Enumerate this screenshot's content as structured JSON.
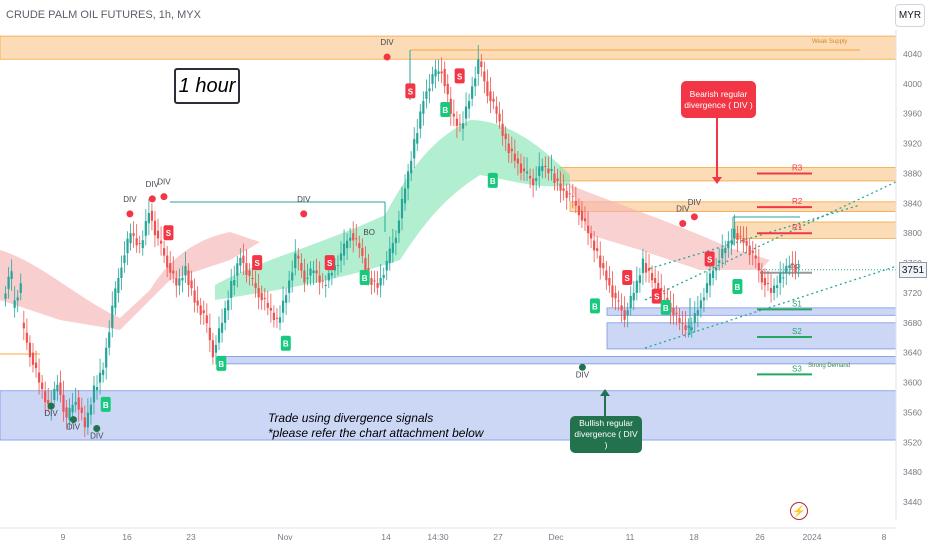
{
  "header": {
    "title": "CRUDE PALM OIL FUTURES, 1h, MYX"
  },
  "currency_button": "MYR",
  "last_price_tag": "3751",
  "timeframe_label": "1 hour",
  "note": {
    "line1": "Trade using divergence signals",
    "line2": "*please refer the chart attachment below"
  },
  "callouts": {
    "bearish": "Bearish regular divergence ( DIV )",
    "bullish": "Bullish regular divergence ( DIV )"
  },
  "logo_icon": "tradingview-logo-icon",
  "colors": {
    "up": "#26a69a",
    "down": "#ef5350",
    "supply": "#f7a440",
    "demand": "#7a96e8",
    "bear_band": "#f6b3b3",
    "bull_band": "#7fe3b0",
    "signal_s": "#f23645",
    "signal_b": "#16c97d"
  },
  "chart_data": {
    "type": "candlestick",
    "title": "CRUDE PALM OIL FUTURES, 1h, MYX",
    "ylim": [
      3380,
      4080
    ],
    "y_ticks": [
      4040,
      4000,
      3960,
      3920,
      3880,
      3840,
      3800,
      3760,
      3720,
      3680,
      3640,
      3600,
      3560,
      3520,
      3480,
      3440
    ],
    "x_ticks": [
      "9",
      "16",
      "23",
      "Nov",
      "14",
      "14:30",
      "27",
      "Dec",
      "11",
      "18",
      "26",
      "2024",
      "8"
    ],
    "last_price": 3751,
    "price_path": [
      [
        3712,
        3752
      ],
      [
        3700,
        3730
      ],
      [
        3680,
        3640
      ],
      [
        3640,
        3600
      ],
      [
        3600,
        3565
      ],
      [
        3565,
        3600
      ],
      [
        3600,
        3550
      ],
      [
        3550,
        3580
      ],
      [
        3580,
        3540
      ],
      [
        3540,
        3590
      ],
      [
        3590,
        3620
      ],
      [
        3620,
        3700
      ],
      [
        3700,
        3760
      ],
      [
        3760,
        3800
      ],
      [
        3800,
        3780
      ],
      [
        3780,
        3830
      ],
      [
        3830,
        3790
      ],
      [
        3790,
        3760
      ],
      [
        3760,
        3730
      ],
      [
        3730,
        3750
      ],
      [
        3750,
        3710
      ],
      [
        3710,
        3690
      ],
      [
        3690,
        3640
      ],
      [
        3640,
        3680
      ],
      [
        3680,
        3730
      ],
      [
        3730,
        3770
      ],
      [
        3770,
        3740
      ],
      [
        3740,
        3720
      ],
      [
        3720,
        3700
      ],
      [
        3700,
        3680
      ],
      [
        3680,
        3720
      ],
      [
        3720,
        3770
      ],
      [
        3770,
        3740
      ],
      [
        3740,
        3750
      ],
      [
        3750,
        3730
      ],
      [
        3730,
        3750
      ],
      [
        3750,
        3770
      ],
      [
        3770,
        3800
      ],
      [
        3800,
        3780
      ],
      [
        3780,
        3740
      ],
      [
        3740,
        3730
      ],
      [
        3730,
        3760
      ],
      [
        3760,
        3800
      ],
      [
        3800,
        3860
      ],
      [
        3860,
        3920
      ],
      [
        3920,
        3980
      ],
      [
        3980,
        4010
      ],
      [
        4010,
        4020
      ],
      [
        4020,
        3960
      ],
      [
        3960,
        3940
      ],
      [
        3940,
        3980
      ],
      [
        3980,
        4030
      ],
      [
        4030,
        3990
      ],
      [
        3990,
        3960
      ],
      [
        3960,
        3920
      ],
      [
        3920,
        3900
      ],
      [
        3900,
        3880
      ],
      [
        3880,
        3870
      ],
      [
        3870,
        3890
      ],
      [
        3890,
        3880
      ],
      [
        3880,
        3860
      ],
      [
        3860,
        3850
      ],
      [
        3850,
        3830
      ],
      [
        3830,
        3800
      ],
      [
        3800,
        3770
      ],
      [
        3770,
        3740
      ],
      [
        3740,
        3710
      ],
      [
        3710,
        3690
      ],
      [
        3690,
        3720
      ],
      [
        3720,
        3760
      ],
      [
        3760,
        3740
      ],
      [
        3740,
        3720
      ],
      [
        3720,
        3700
      ],
      [
        3700,
        3680
      ],
      [
        3680,
        3670
      ],
      [
        3670,
        3700
      ],
      [
        3700,
        3730
      ],
      [
        3730,
        3760
      ],
      [
        3760,
        3780
      ],
      [
        3780,
        3800
      ],
      [
        3800,
        3790
      ],
      [
        3790,
        3770
      ],
      [
        3770,
        3740
      ],
      [
        3740,
        3720
      ],
      [
        3720,
        3740
      ],
      [
        3740,
        3760
      ],
      [
        3760,
        3751
      ]
    ],
    "zones": [
      {
        "label": "Weak Supply",
        "y0": 4033,
        "y1": 4064,
        "kind": "supply"
      },
      {
        "label": "",
        "y0": 3870,
        "y1": 3888,
        "kind": "supply"
      },
      {
        "label": "",
        "y0": 3829,
        "y1": 3842,
        "kind": "supply"
      },
      {
        "label": "",
        "y0": 3793,
        "y1": 3815,
        "kind": "supply"
      },
      {
        "label": "",
        "y0": 3690,
        "y1": 3700,
        "kind": "demand"
      },
      {
        "label": "",
        "y0": 3645,
        "y1": 3680,
        "kind": "demand"
      },
      {
        "label": "",
        "y0": 3625,
        "y1": 3635,
        "kind": "demand"
      },
      {
        "label": "Strong Demand",
        "y0": 3523,
        "y1": 3589,
        "kind": "demand"
      }
    ],
    "pivots": [
      {
        "label": "R3",
        "y": 3880
      },
      {
        "label": "R2",
        "y": 3835
      },
      {
        "label": "R1",
        "y": 3800
      },
      {
        "label": "PP",
        "y": 3747
      },
      {
        "label": "S1",
        "y": 3698
      },
      {
        "label": "S2",
        "y": 3661
      },
      {
        "label": "S3",
        "y": 3611
      }
    ],
    "signals": [
      {
        "label": "S",
        "x": 0.188,
        "y": 3800
      },
      {
        "label": "S",
        "x": 0.287,
        "y": 3760
      },
      {
        "label": "S",
        "x": 0.368,
        "y": 3760
      },
      {
        "label": "S",
        "x": 0.458,
        "y": 3990
      },
      {
        "label": "S",
        "x": 0.513,
        "y": 4010
      },
      {
        "label": "S",
        "x": 0.7,
        "y": 3740
      },
      {
        "label": "S",
        "x": 0.792,
        "y": 3765
      },
      {
        "label": "S",
        "x": 0.733,
        "y": 3715
      },
      {
        "label": "B",
        "x": 0.118,
        "y": 3570
      },
      {
        "label": "B",
        "x": 0.247,
        "y": 3625
      },
      {
        "label": "B",
        "x": 0.319,
        "y": 3652
      },
      {
        "label": "B",
        "x": 0.407,
        "y": 3740
      },
      {
        "label": "B",
        "x": 0.497,
        "y": 3965
      },
      {
        "label": "B",
        "x": 0.55,
        "y": 3870
      },
      {
        "label": "B",
        "x": 0.664,
        "y": 3702
      },
      {
        "label": "B",
        "x": 0.743,
        "y": 3700
      },
      {
        "label": "B",
        "x": 0.823,
        "y": 3728
      }
    ],
    "div_labels": [
      {
        "text": "DIV",
        "x": 0.145,
        "y": 3842
      },
      {
        "text": "DIV",
        "x": 0.17,
        "y": 3862
      },
      {
        "text": "DIV",
        "x": 0.183,
        "y": 3865
      },
      {
        "text": "DIV",
        "x": 0.339,
        "y": 3842
      },
      {
        "text": "DIV",
        "x": 0.432,
        "y": 4052
      },
      {
        "text": "DIV",
        "x": 0.057,
        "y": 3555
      },
      {
        "text": "DIV",
        "x": 0.082,
        "y": 3537
      },
      {
        "text": "DIV",
        "x": 0.108,
        "y": 3525
      },
      {
        "text": "DIV",
        "x": 0.762,
        "y": 3829
      },
      {
        "text": "DIV",
        "x": 0.775,
        "y": 3838
      },
      {
        "text": "DIV",
        "x": 0.65,
        "y": 3607
      }
    ],
    "bo_label": {
      "text": "BO",
      "x": 0.412,
      "y": 3795
    },
    "legend": "none",
    "grid": false
  }
}
